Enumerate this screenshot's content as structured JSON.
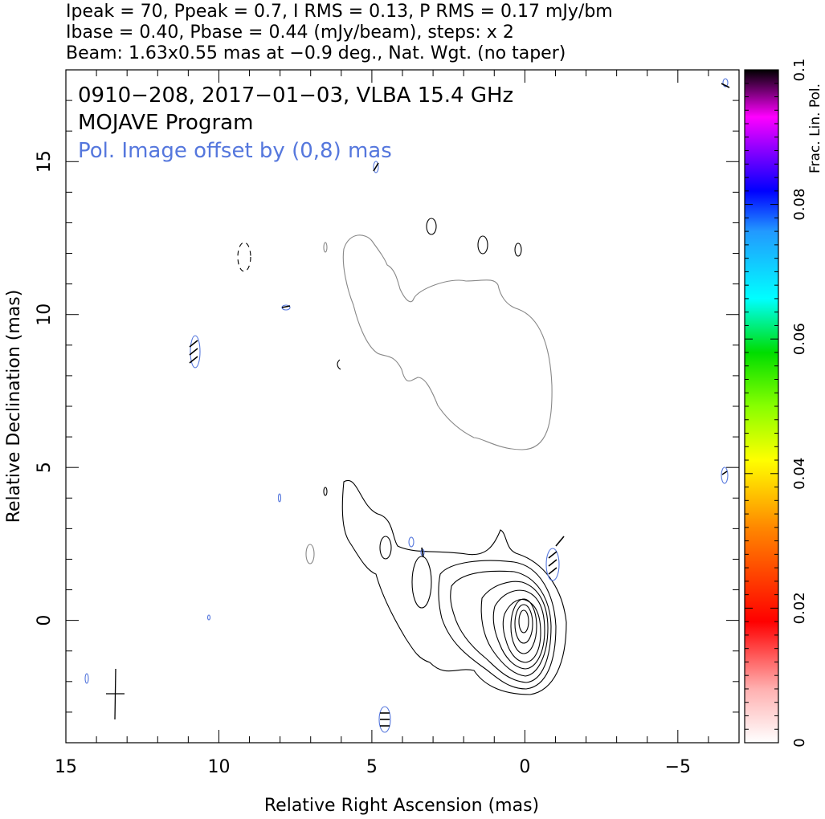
{
  "header": {
    "line1": "Ipeak = 70, Ppeak = 0.7, I RMS = 0.13, P RMS = 0.17 mJy/bm",
    "line2": "Ibase = 0.40, Pbase = 0.44 (mJy/beam), steps: x 2",
    "line3": "Beam: 1.63x0.55 mas at −0.9 deg., Nat. Wgt. (no taper)"
  },
  "plot_labels": {
    "source": "0910−208, 2017−01−03, VLBA 15.4 GHz",
    "program": "MOJAVE Program",
    "pol_offset": "Pol. Image offset by (0,8) mas"
  },
  "colors": {
    "total_intensity": "#000000",
    "polarized_intensity": "#888888",
    "polarization_contours": "#5577dd",
    "evpa_ticks": "#000000"
  },
  "chart_data": {
    "type": "contour",
    "xlabel": "Relative Right Ascension (mas)",
    "ylabel": "Relative Declination (mas)",
    "xlim": [
      15,
      -7
    ],
    "ylim": [
      -4,
      18
    ],
    "x_ticks": [
      15,
      10,
      5,
      0,
      -5
    ],
    "x_tick_labels": [
      "15",
      "10",
      "5",
      "0",
      "−5"
    ],
    "y_ticks": [
      0,
      5,
      10,
      15
    ],
    "y_tick_labels": [
      "0",
      "5",
      "10",
      "15"
    ],
    "colorbar": {
      "label": "Frac. Lin. Pol.",
      "range": [
        0,
        0.1
      ],
      "ticks": [
        0,
        0.02,
        0.04,
        0.06,
        0.08,
        0.1
      ],
      "tick_labels": [
        "0",
        "0.02",
        "0.04",
        "0.06",
        "0.08",
        "0.1"
      ]
    },
    "core_position": [
      0,
      0
    ],
    "contour_levels_mJy": [
      0.4,
      0.8,
      1.6,
      3.2,
      6.4,
      12.8,
      25.6,
      51.2
    ],
    "jet_direction": "north-east",
    "beam": {
      "major_mas": 1.63,
      "minor_mas": 0.55,
      "pa_deg": -0.9
    }
  }
}
